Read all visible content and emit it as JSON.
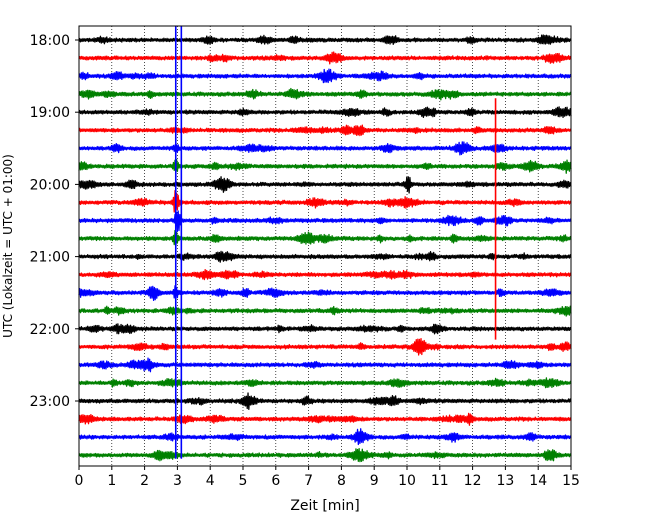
{
  "chart_data": {
    "type": "line",
    "title": "",
    "xlabel": "Zeit  [min]",
    "ylabel": "UTC (Lokalzeit = UTC + 01:00)",
    "xlim": [
      0,
      15
    ],
    "x_ticks": [
      0,
      1,
      2,
      3,
      4,
      5,
      6,
      7,
      8,
      9,
      10,
      11,
      12,
      13,
      14,
      15
    ],
    "x_tick_labels": [
      "0",
      "1",
      "2",
      "3",
      "4",
      "5",
      "6",
      "7",
      "8",
      "9",
      "10",
      "11",
      "12",
      "13",
      "14",
      "15"
    ],
    "y_tick_labels": [
      {
        "label": "18:00",
        "trace": 0
      },
      {
        "label": "19:00",
        "trace": 4
      },
      {
        "label": "20:00",
        "trace": 8
      },
      {
        "label": "21:00",
        "trace": 12
      },
      {
        "label": "22:00",
        "trace": 16
      },
      {
        "label": "23:00",
        "trace": 20
      }
    ],
    "trace_interval_min": 15,
    "trace_colors": [
      "#000000",
      "#ff0000",
      "#0000ff",
      "#008000"
    ],
    "traces": [
      {
        "start": "18:00",
        "color": "#000000"
      },
      {
        "start": "18:15",
        "color": "#ff0000"
      },
      {
        "start": "18:30",
        "color": "#0000ff"
      },
      {
        "start": "18:45",
        "color": "#008000"
      },
      {
        "start": "19:00",
        "color": "#000000"
      },
      {
        "start": "19:15",
        "color": "#ff0000"
      },
      {
        "start": "19:30",
        "color": "#0000ff"
      },
      {
        "start": "19:45",
        "color": "#008000"
      },
      {
        "start": "20:00",
        "color": "#000000"
      },
      {
        "start": "20:15",
        "color": "#ff0000"
      },
      {
        "start": "20:30",
        "color": "#0000ff"
      },
      {
        "start": "20:45",
        "color": "#008000"
      },
      {
        "start": "21:00",
        "color": "#000000"
      },
      {
        "start": "21:15",
        "color": "#ff0000"
      },
      {
        "start": "21:30",
        "color": "#0000ff"
      },
      {
        "start": "21:45",
        "color": "#008000"
      },
      {
        "start": "22:00",
        "color": "#000000"
      },
      {
        "start": "22:15",
        "color": "#ff0000"
      },
      {
        "start": "22:30",
        "color": "#0000ff"
      },
      {
        "start": "22:45",
        "color": "#008000"
      },
      {
        "start": "23:00",
        "color": "#000000"
      },
      {
        "start": "23:15",
        "color": "#ff0000"
      },
      {
        "start": "23:30",
        "color": "#0000ff"
      },
      {
        "start": "23:45",
        "color": "#008000"
      }
    ],
    "events": [
      {
        "name": "event-blue-1",
        "color": "#0000ff",
        "x": 2.95,
        "trace_from": 0,
        "trace_to": 23.2
      },
      {
        "name": "event-blue-2",
        "color": "#0000ff",
        "x": 3.12,
        "trace_from": 0,
        "trace_to": 23.2
      },
      {
        "name": "event-red",
        "color": "#ff0000",
        "x": 12.7,
        "trace_from": 4,
        "trace_to": 16.6
      }
    ],
    "bursts": [
      {
        "trace": 8,
        "x": 10.05,
        "amp": 8
      },
      {
        "trace": 9,
        "x": 2.95,
        "amp": 9
      },
      {
        "trace": 10,
        "x": 3.0,
        "amp": 16
      },
      {
        "trace": 11,
        "x": 2.95,
        "amp": 8
      },
      {
        "trace": 14,
        "x": 2.95,
        "amp": 6
      },
      {
        "trace": 7,
        "x": 2.95,
        "amp": 7
      },
      {
        "trace": 6,
        "x": 2.95,
        "amp": 5
      }
    ],
    "grid": "vertical dotted",
    "legend": "none"
  }
}
